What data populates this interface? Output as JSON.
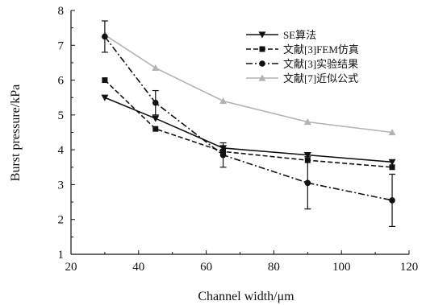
{
  "chart_data": {
    "type": "line",
    "title": "",
    "xlabel": "Channel width/μm",
    "ylabel": "Burst pressure/kPa",
    "xlim": [
      20,
      120
    ],
    "ylim": [
      1,
      8
    ],
    "xticks": [
      20,
      40,
      60,
      80,
      100,
      120
    ],
    "yticks": [
      1,
      2,
      3,
      4,
      5,
      6,
      7,
      8
    ],
    "grid": false,
    "legend_position": "top-right",
    "series": [
      {
        "name": "SE算法",
        "color": "#111111",
        "dash": "",
        "marker": "triangle-down",
        "x": [
          30,
          45,
          65,
          90,
          115
        ],
        "y": [
          5.5,
          4.9,
          4.05,
          3.85,
          3.65
        ]
      },
      {
        "name": "文献[3]FEM仿真",
        "color": "#111111",
        "dash": "6,3",
        "marker": "square",
        "x": [
          30,
          45,
          65,
          90,
          115
        ],
        "y": [
          6.0,
          4.6,
          3.95,
          3.7,
          3.5
        ]
      },
      {
        "name": "文献[3]实验结果",
        "color": "#111111",
        "dash": "8,3,2,3",
        "marker": "circle",
        "x": [
          30,
          45,
          65,
          90,
          115
        ],
        "y": [
          7.25,
          5.35,
          3.85,
          3.05,
          2.55
        ],
        "error": [
          0.45,
          0.35,
          0.35,
          0.75,
          0.75
        ]
      },
      {
        "name": "文献[7]近似公式",
        "color": "#b3b3b3",
        "dash": "",
        "marker": "triangle-up",
        "x": [
          30,
          45,
          65,
          90,
          115
        ],
        "y": [
          7.3,
          6.35,
          5.4,
          4.8,
          4.5
        ]
      }
    ]
  }
}
